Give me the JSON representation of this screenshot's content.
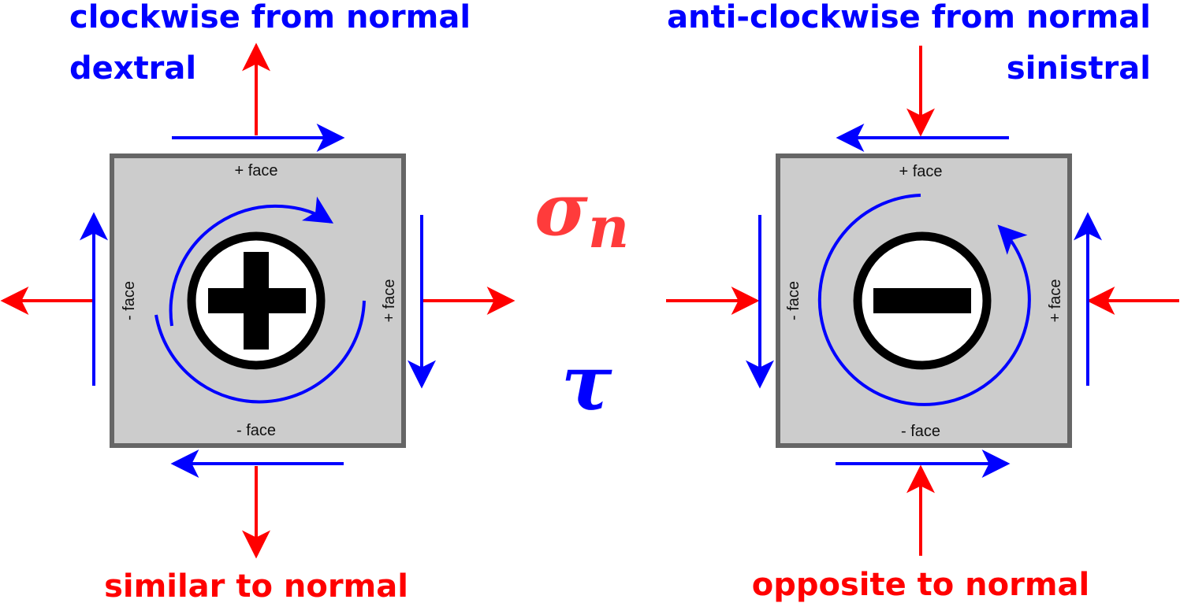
{
  "colors": {
    "shear": "#0000ff",
    "normal": "#ff0000",
    "block_fill": "#cccccc",
    "block_stroke": "#666666",
    "symbol": "#000000",
    "greek_sigma": "#ff3b3b",
    "greek_tau": "#0000ff"
  },
  "left_panel": {
    "title_line1": "clockwise from normal",
    "title_line2": "dextral",
    "bottom_label": "similar to normal",
    "faces": {
      "top": "+ face",
      "bottom": "- face",
      "left": "- face",
      "right": "+ face"
    },
    "sign_icon": "plus-icon",
    "rotation": "clockwise",
    "normal_stress": "tension"
  },
  "right_panel": {
    "title_line1": "anti-clockwise from normal",
    "title_line2": "sinistral",
    "bottom_label": "opposite to normal",
    "faces": {
      "top": "+ face",
      "bottom": "- face",
      "left": "- face",
      "right": "+ face"
    },
    "sign_icon": "minus-icon",
    "rotation": "anti-clockwise",
    "normal_stress": "compression"
  },
  "center": {
    "sigma_symbol": "σ",
    "sigma_subscript": "n",
    "tau_symbol": "τ"
  }
}
